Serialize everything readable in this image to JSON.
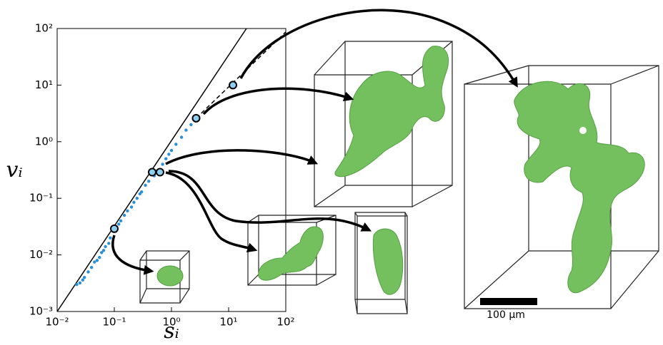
{
  "chart_data": {
    "type": "scatter",
    "x_label": "sᵢ",
    "y_label": "vᵢ",
    "xscale": "log",
    "yscale": "log",
    "xlim": [
      0.01,
      100
    ],
    "ylim": [
      0.001,
      100
    ],
    "xticks": [
      {
        "value": 0.01,
        "label": "10⁻²"
      },
      {
        "value": 0.1,
        "label": "10⁻¹"
      },
      {
        "value": 1,
        "label": "10⁰"
      },
      {
        "value": 10,
        "label": "10¹"
      },
      {
        "value": 100,
        "label": "10²"
      }
    ],
    "yticks": [
      {
        "value": 0.001,
        "label": "10⁻³"
      },
      {
        "value": 0.01,
        "label": "10⁻²"
      },
      {
        "value": 0.1,
        "label": "10⁻¹"
      },
      {
        "value": 1,
        "label": "10⁰"
      },
      {
        "value": 10,
        "label": "10¹"
      },
      {
        "value": 100,
        "label": "10²"
      }
    ],
    "color": "#2a8fd6",
    "x": [
      0.022,
      0.025,
      0.028,
      0.03,
      0.035,
      0.04,
      0.045,
      0.05,
      0.055,
      0.06,
      0.065,
      0.07,
      0.08,
      0.085,
      0.11,
      0.12,
      0.13,
      0.15,
      0.17,
      0.2,
      0.22,
      0.25,
      0.28,
      0.3,
      0.35,
      0.4,
      0.5,
      0.55,
      0.7,
      0.8,
      0.9,
      1.0,
      1.2,
      1.5,
      1.8,
      2.2
    ],
    "y": [
      0.003,
      0.0032,
      0.0036,
      0.004,
      0.005,
      0.006,
      0.0075,
      0.008,
      0.009,
      0.011,
      0.012,
      0.014,
      0.016,
      0.02,
      0.03,
      0.035,
      0.04,
      0.05,
      0.06,
      0.07,
      0.085,
      0.1,
      0.12,
      0.13,
      0.17,
      0.2,
      0.25,
      0.3,
      0.4,
      0.5,
      0.6,
      0.7,
      0.9,
      1.2,
      1.6,
      2.0
    ],
    "highlighted": {
      "x": [
        0.1,
        0.46,
        0.63,
        2.7,
        11.9
      ],
      "y": [
        0.029,
        0.29,
        0.29,
        2.6,
        10
      ]
    },
    "lines": [
      {
        "style": "solid",
        "x": [
          0.01,
          20.5
        ],
        "y": [
          0.001,
          100
        ]
      },
      {
        "style": "dashed",
        "x": [
          2.7,
          100
        ],
        "y": [
          2.6,
          87
        ]
      }
    ],
    "annotation": "100 µm"
  }
}
